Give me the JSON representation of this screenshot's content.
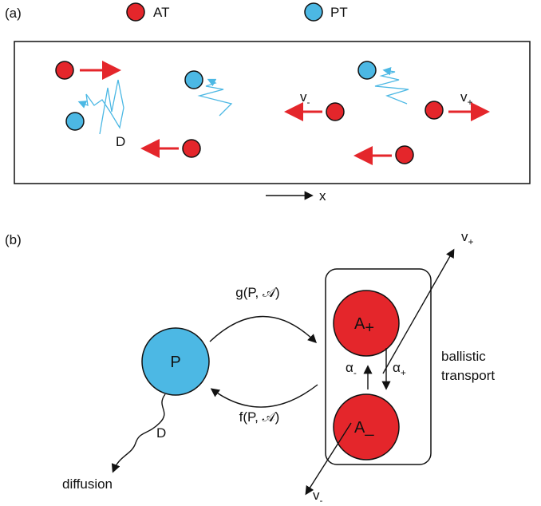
{
  "panel_a": {
    "label": "(a)",
    "legend": [
      {
        "label": "AT"
      },
      {
        "label": "PT"
      }
    ],
    "velocity_minus": {
      "symbol": "v",
      "subscript": "-"
    },
    "velocity_plus": {
      "symbol": "v",
      "subscript": "+"
    },
    "diffusion_label": "D",
    "axis_label": "x"
  },
  "panel_b": {
    "label": "(b)",
    "nodes": [
      {
        "label": "P"
      },
      {
        "symbol": "A",
        "subscript": "+"
      },
      {
        "symbol": "A",
        "subscript": "_"
      }
    ],
    "edges": [
      {
        "label": "g(P, 𝒜)"
      },
      {
        "label": "f(P, 𝒜)"
      }
    ],
    "rates": [
      {
        "symbol": "α",
        "subscript": "-"
      },
      {
        "symbol": "α",
        "subscript": "+"
      }
    ],
    "velocity_plus": {
      "symbol": "v",
      "subscript": "+"
    },
    "velocity_minus": {
      "symbol": "v",
      "subscript": "-"
    },
    "group_label": [
      "ballistic",
      "transport"
    ],
    "diffusion_symbol": "D",
    "diffusion_label": "diffusion"
  }
}
